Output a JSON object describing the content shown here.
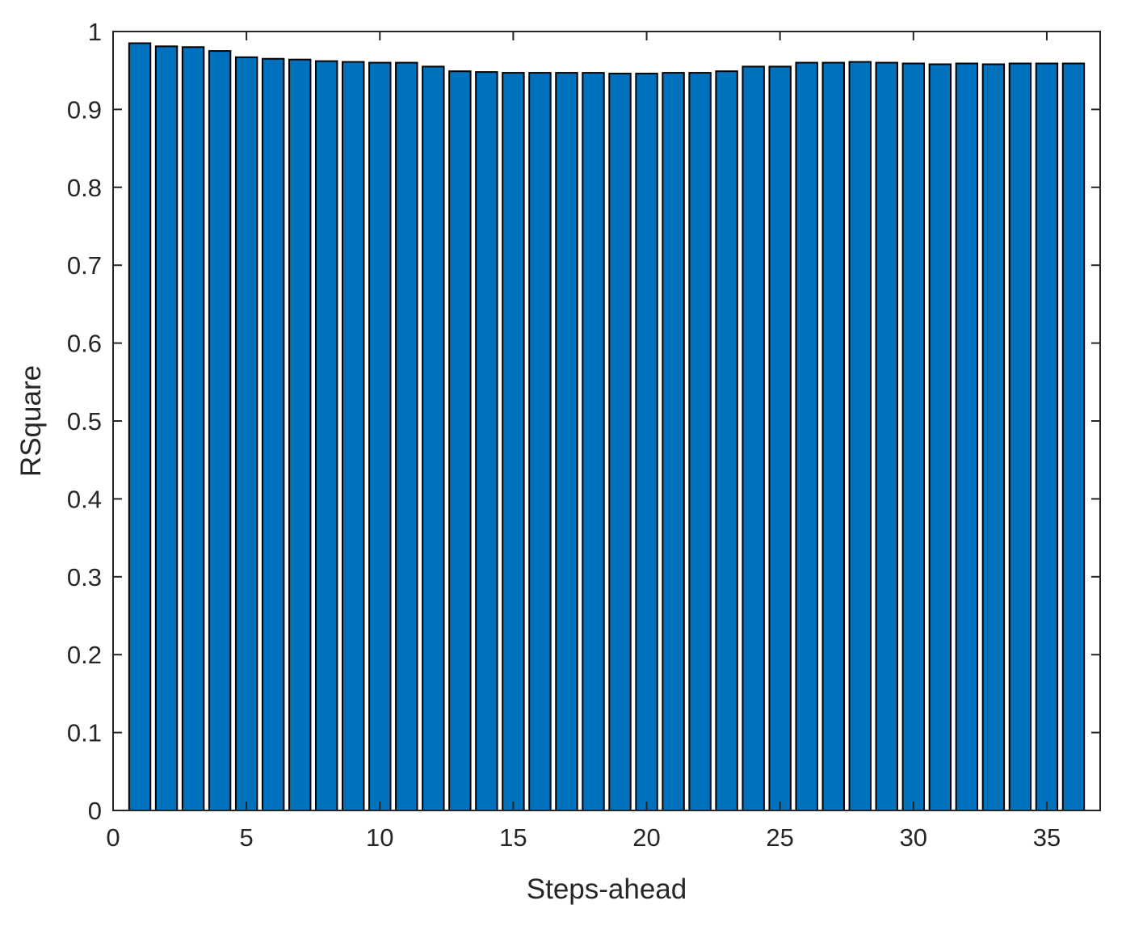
{
  "chart_data": {
    "type": "bar",
    "xlabel": "Steps-ahead",
    "ylabel": "RSquare",
    "xlim": [
      0,
      37
    ],
    "ylim": [
      0,
      1
    ],
    "xticks": [
      0,
      5,
      10,
      15,
      20,
      25,
      30,
      35
    ],
    "yticks": [
      0,
      0.1,
      0.2,
      0.3,
      0.4,
      0.5,
      0.6,
      0.7,
      0.8,
      0.9,
      1
    ],
    "ytick_labels": [
      "0",
      "0.1",
      "0.2",
      "0.3",
      "0.4",
      "0.5",
      "0.6",
      "0.7",
      "0.8",
      "0.9",
      "1"
    ],
    "grid": false,
    "bar_color": "#0072BD",
    "x": [
      1,
      2,
      3,
      4,
      5,
      6,
      7,
      8,
      9,
      10,
      11,
      12,
      13,
      14,
      15,
      16,
      17,
      18,
      19,
      20,
      21,
      22,
      23,
      24,
      25,
      26,
      27,
      28,
      29,
      30,
      31,
      32,
      33,
      34,
      35,
      36
    ],
    "values": [
      0.985,
      0.981,
      0.98,
      0.975,
      0.967,
      0.965,
      0.964,
      0.962,
      0.961,
      0.96,
      0.96,
      0.955,
      0.949,
      0.948,
      0.947,
      0.947,
      0.947,
      0.947,
      0.946,
      0.946,
      0.947,
      0.947,
      0.949,
      0.955,
      0.955,
      0.96,
      0.96,
      0.961,
      0.96,
      0.959,
      0.958,
      0.959,
      0.958,
      0.959,
      0.959,
      0.959
    ]
  }
}
